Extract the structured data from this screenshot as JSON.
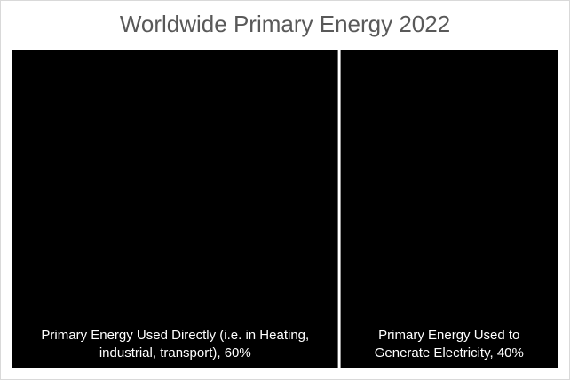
{
  "chart_data": {
    "type": "treemap",
    "title": "Worldwide Primary Energy 2022",
    "unit": "%",
    "tiles": [
      {
        "label_lines": [
          "Primary Energy Used Directly (i.e. in Heating,",
          "industrial, transport), 60%"
        ],
        "value": 60,
        "color": "#000000"
      },
      {
        "label_lines": [
          "Primary Energy Used to",
          "Generate Electricity, 40%"
        ],
        "value": 40,
        "color": "#000000"
      }
    ]
  }
}
